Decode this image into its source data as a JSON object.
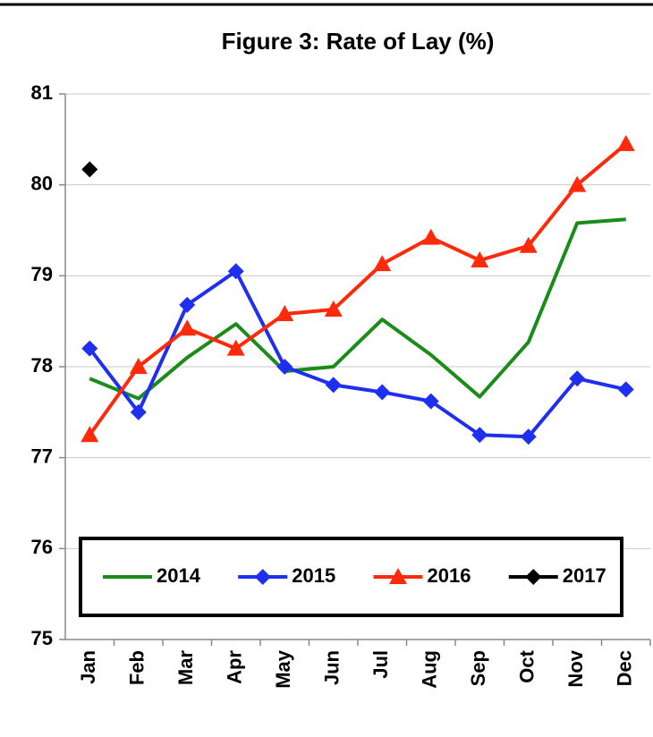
{
  "chart_data": {
    "type": "line",
    "title": "Figure 3: Rate of Lay (%)",
    "categories": [
      "Jan",
      "Feb",
      "Mar",
      "Apr",
      "May",
      "Jun",
      "Jul",
      "Aug",
      "Sep",
      "Oct",
      "Nov",
      "Dec"
    ],
    "series": [
      {
        "name": "2014",
        "color": "#1a8c1a",
        "marker": "none",
        "values": [
          77.87,
          77.65,
          78.1,
          78.47,
          77.95,
          78.0,
          78.52,
          78.13,
          77.67,
          78.27,
          79.58,
          79.62
        ]
      },
      {
        "name": "2015",
        "color": "#1f2ff0",
        "marker": "diamond",
        "values": [
          78.2,
          77.5,
          78.68,
          79.05,
          78.0,
          77.8,
          77.72,
          77.62,
          77.25,
          77.23,
          77.87,
          77.75
        ]
      },
      {
        "name": "2016",
        "color": "#ff2a0a",
        "marker": "triangle",
        "values": [
          77.25,
          78.0,
          78.42,
          78.2,
          78.58,
          78.63,
          79.13,
          79.42,
          79.17,
          79.33,
          80.0,
          80.45
        ]
      },
      {
        "name": "2017",
        "color": "#000000",
        "marker": "diamond",
        "values": [
          80.17,
          null,
          null,
          null,
          null,
          null,
          null,
          null,
          null,
          null,
          null,
          null
        ]
      }
    ],
    "ylim": [
      75,
      81
    ],
    "yticks": [
      75,
      76,
      77,
      78,
      79,
      80,
      81
    ],
    "grid": true,
    "legend": "bottom"
  }
}
